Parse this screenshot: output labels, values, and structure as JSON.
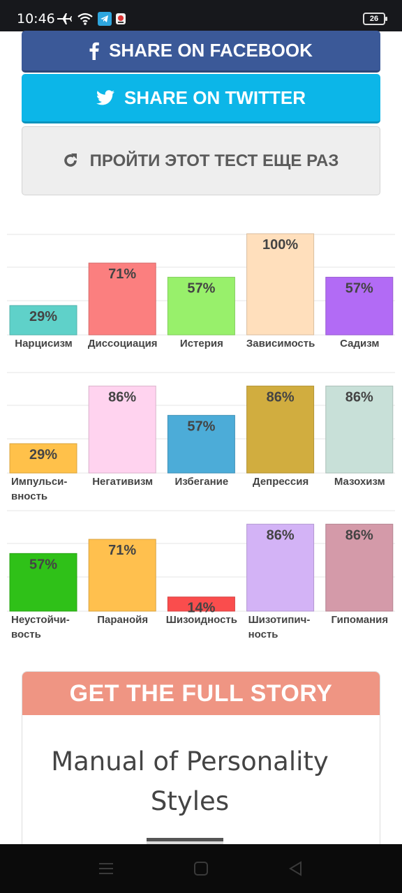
{
  "status_bar": {
    "time": "10:46",
    "battery": "26"
  },
  "buttons": {
    "facebook": "SHARE ON FACEBOOK",
    "twitter": "SHARE ON TWITTER",
    "retry": "ПРОЙТИ ЭТОТ ТЕСТ ЕЩЕ РАЗ"
  },
  "chart_data": [
    {
      "type": "bar",
      "categories": [
        "Нарцисизм",
        "Диссоциация",
        "Истерия",
        "Зависимость",
        "Садизм"
      ],
      "values": [
        29,
        71,
        57,
        100,
        57
      ],
      "labels": [
        "29%",
        "71%",
        "57%",
        "100%",
        "57%"
      ],
      "colors": [
        "#5fd1c9",
        "#fb7f7f",
        "#98f06b",
        "#ffdfbc",
        "#b26bf5"
      ],
      "ylim": [
        0,
        100
      ]
    },
    {
      "type": "bar",
      "categories": [
        "Импульси-вность",
        "Негативизм",
        "Избегание",
        "Депрессия",
        "Мазохизм"
      ],
      "values": [
        29,
        86,
        57,
        86,
        86
      ],
      "labels": [
        "29%",
        "86%",
        "57%",
        "86%",
        "86%"
      ],
      "colors": [
        "#ffc14a",
        "#ffd3ef",
        "#4cacd8",
        "#d1ad3f",
        "#c8e0d8"
      ],
      "ylim": [
        0,
        100
      ]
    },
    {
      "type": "bar",
      "categories": [
        "Неустойчи-вость",
        "Паранойя",
        "Шизоидность",
        "Шизотипич-ность",
        "Гипомания"
      ],
      "values": [
        57,
        71,
        14,
        86,
        86
      ],
      "labels": [
        "57%",
        "71%",
        "14%",
        "86%",
        "86%"
      ],
      "colors": [
        "#2fc118",
        "#ffc04e",
        "#fa4d4d",
        "#d3b3f6",
        "#d49aa9"
      ],
      "ylim": [
        0,
        100
      ]
    }
  ],
  "story": {
    "header": "GET THE FULL STORY",
    "title": "Manual of Personality Styles"
  }
}
